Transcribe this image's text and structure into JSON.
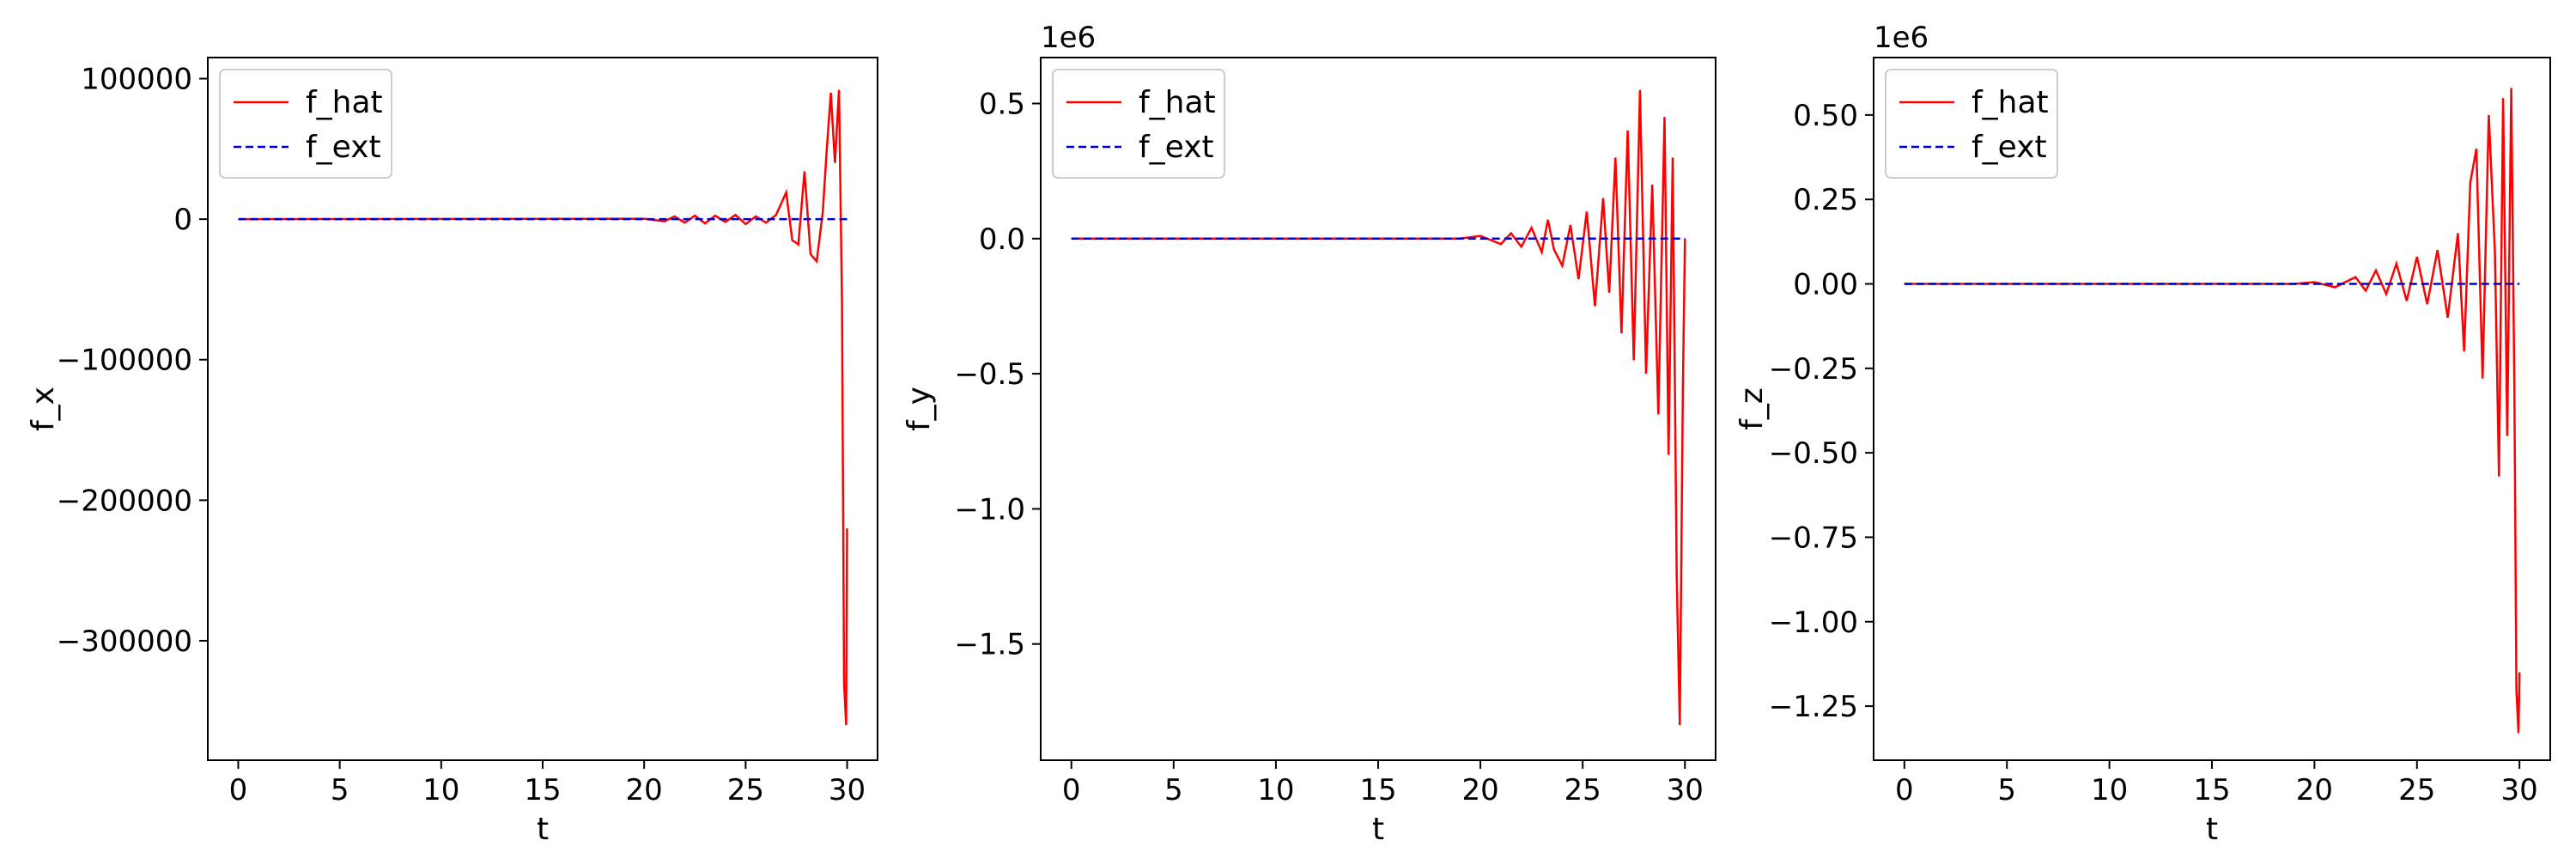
{
  "colors": {
    "f_hat": "#ff0000",
    "f_ext": "#0000cc",
    "axes": "#000000"
  },
  "chart_data": [
    {
      "type": "line",
      "xlabel": "t",
      "ylabel": "f_x",
      "offset": "",
      "xlim": [
        -1.5,
        31.5
      ],
      "ylim": [
        -385000,
        115000
      ],
      "xticks": [
        0,
        5,
        10,
        15,
        20,
        25,
        30
      ],
      "xtick_labels": [
        "0",
        "5",
        "10",
        "15",
        "20",
        "25",
        "30"
      ],
      "yticks": [
        100000,
        0,
        -100000,
        -200000,
        -300000
      ],
      "ytick_labels": [
        "100000",
        "0",
        "−100000",
        "−200000",
        "−300000"
      ],
      "legend": {
        "placement": "upper-left",
        "entries": [
          "f_hat",
          "f_ext"
        ]
      },
      "series": [
        {
          "name": "f_hat",
          "style": "solid",
          "x": [
            0,
            20,
            21,
            21.5,
            22,
            22.5,
            23,
            23.5,
            24,
            24.5,
            25,
            25.5,
            26,
            26.5,
            27,
            27.3,
            27.6,
            27.9,
            28.2,
            28.5,
            28.8,
            29,
            29.2,
            29.4,
            29.6,
            29.75,
            29.85,
            29.95,
            30
          ],
          "y": [
            0,
            300,
            -1500,
            2000,
            -2500,
            2500,
            -3000,
            2500,
            -2000,
            3000,
            -3500,
            2000,
            -2500,
            3000,
            19000,
            -15000,
            -18000,
            34000,
            -25000,
            -30000,
            5000,
            50000,
            90000,
            40000,
            92000,
            -60000,
            -330000,
            -360000,
            -220000
          ]
        },
        {
          "name": "f_ext",
          "style": "dashed",
          "x": [
            0,
            30
          ],
          "y": [
            0,
            0
          ]
        }
      ]
    },
    {
      "type": "line",
      "xlabel": "t",
      "ylabel": "f_y",
      "offset": "1e6",
      "xlim": [
        -1.5,
        31.5
      ],
      "ylim": [
        -1.93,
        0.67
      ],
      "xticks": [
        0,
        5,
        10,
        15,
        20,
        25,
        30
      ],
      "xtick_labels": [
        "0",
        "5",
        "10",
        "15",
        "20",
        "25",
        "30"
      ],
      "yticks": [
        0.5,
        0.0,
        -0.5,
        -1.0,
        -1.5
      ],
      "ytick_labels": [
        "0.5",
        "0.0",
        "−0.5",
        "−1.0",
        "−1.5"
      ],
      "legend": {
        "placement": "upper-left",
        "entries": [
          "f_hat",
          "f_ext"
        ]
      },
      "series": [
        {
          "name": "f_hat",
          "style": "solid",
          "x": [
            0,
            19,
            20,
            21,
            21.5,
            22,
            22.5,
            23,
            23.3,
            23.6,
            24,
            24.4,
            24.8,
            25.2,
            25.6,
            26,
            26.3,
            26.6,
            26.9,
            27.2,
            27.5,
            27.8,
            28.1,
            28.4,
            28.7,
            29,
            29.2,
            29.4,
            29.6,
            29.75,
            29.9,
            30
          ],
          "y": [
            0,
            0,
            0.01,
            -0.02,
            0.02,
            -0.03,
            0.04,
            -0.05,
            0.07,
            -0.04,
            -0.1,
            0.05,
            -0.15,
            0.1,
            -0.25,
            0.15,
            -0.2,
            0.3,
            -0.35,
            0.4,
            -0.45,
            0.55,
            -0.5,
            0.2,
            -0.65,
            0.45,
            -0.8,
            0.3,
            -1.25,
            -1.8,
            -0.55,
            0.0
          ]
        },
        {
          "name": "f_ext",
          "style": "dashed",
          "x": [
            0,
            30
          ],
          "y": [
            0,
            0
          ]
        }
      ]
    },
    {
      "type": "line",
      "xlabel": "t",
      "ylabel": "f_z",
      "offset": "1e6",
      "xlim": [
        -1.5,
        31.5
      ],
      "ylim": [
        -1.41,
        0.67
      ],
      "xticks": [
        0,
        5,
        10,
        15,
        20,
        25,
        30
      ],
      "xtick_labels": [
        "0",
        "5",
        "10",
        "15",
        "20",
        "25",
        "30"
      ],
      "yticks": [
        0.5,
        0.25,
        0.0,
        -0.25,
        -0.5,
        -0.75,
        -1.0,
        -1.25
      ],
      "ytick_labels": [
        "0.50",
        "0.25",
        "0.00",
        "−0.25",
        "−0.50",
        "−0.75",
        "−1.00",
        "−1.25"
      ],
      "legend": {
        "placement": "upper-left",
        "entries": [
          "f_hat",
          "f_ext"
        ]
      },
      "series": [
        {
          "name": "f_hat",
          "style": "solid",
          "x": [
            0,
            19,
            20,
            21,
            22,
            22.5,
            23,
            23.5,
            24,
            24.5,
            25,
            25.5,
            26,
            26.5,
            27,
            27.3,
            27.6,
            27.9,
            28.2,
            28.5,
            28.8,
            29,
            29.2,
            29.4,
            29.6,
            29.75,
            29.85,
            29.95,
            30
          ],
          "y": [
            0,
            0,
            0.005,
            -0.01,
            0.02,
            -0.02,
            0.04,
            -0.03,
            0.06,
            -0.05,
            0.08,
            -0.06,
            0.1,
            -0.1,
            0.15,
            -0.2,
            0.3,
            0.4,
            -0.28,
            0.5,
            0.1,
            -0.57,
            0.55,
            -0.45,
            0.58,
            -0.3,
            -1.2,
            -1.33,
            -1.15
          ]
        },
        {
          "name": "f_ext",
          "style": "dashed",
          "x": [
            0,
            30
          ],
          "y": [
            0,
            0
          ]
        }
      ]
    }
  ]
}
